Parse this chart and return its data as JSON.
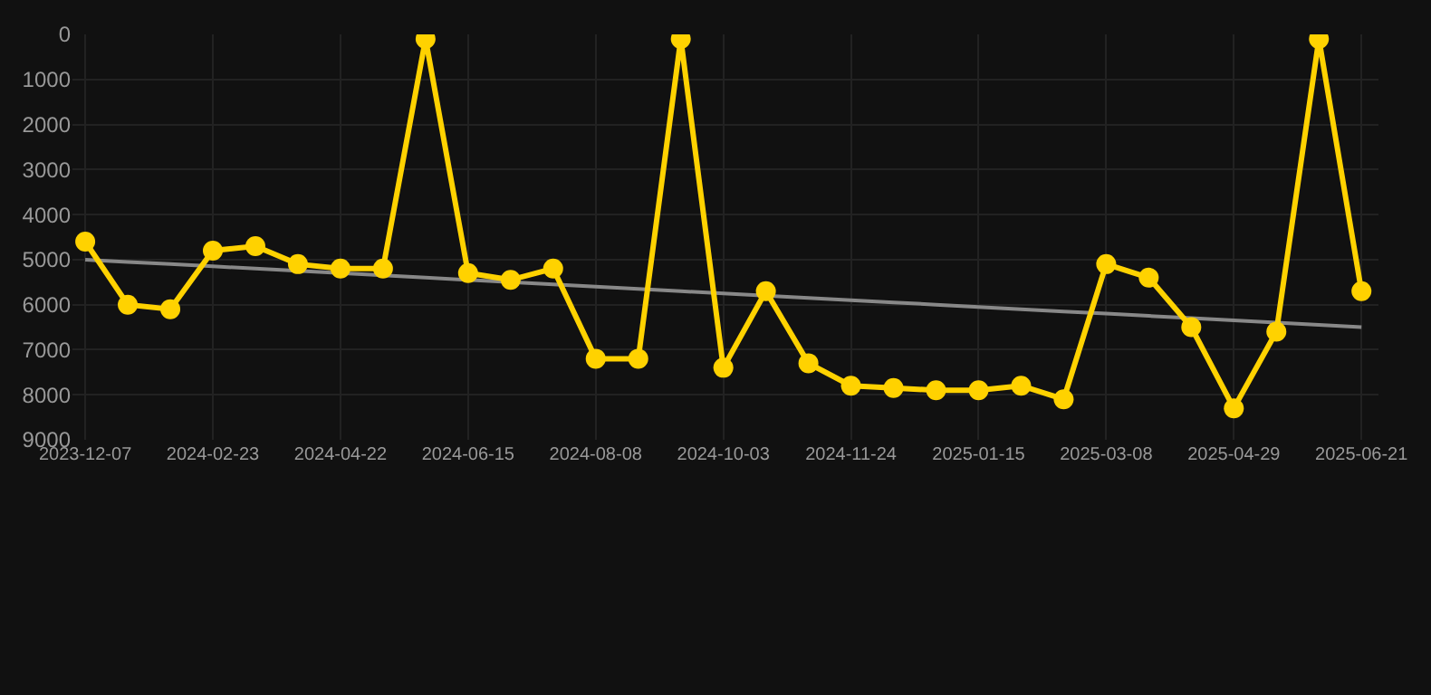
{
  "chart_data": {
    "type": "line",
    "categories": [
      "2023-12-07",
      null,
      null,
      "2024-02-23",
      null,
      null,
      "2024-04-22",
      null,
      null,
      "2024-06-15",
      null,
      null,
      "2024-08-08",
      null,
      null,
      "2024-10-03",
      null,
      null,
      "2024-11-24",
      null,
      null,
      "2025-01-15",
      null,
      null,
      "2025-03-08",
      null,
      null,
      "2025-04-29",
      null,
      null,
      "2025-06-21"
    ],
    "series": [
      {
        "color": "#ffd200",
        "marker": "circle",
        "values": [
          4600,
          6000,
          6100,
          4800,
          4700,
          5100,
          5200,
          5200,
          100,
          5300,
          5450,
          5200,
          7200,
          7200,
          100,
          7400,
          5700,
          7300,
          7800,
          7850,
          7900,
          7900,
          7800,
          8100,
          5100,
          5400,
          6500,
          8300,
          6600,
          100,
          5700
        ]
      },
      {
        "type": "line",
        "color": "#888888",
        "marker": "none",
        "values": [
          5000,
          5050,
          5100,
          5150,
          5200,
          5250,
          5300,
          5350,
          5400,
          5450,
          5500,
          5550,
          5600,
          5650,
          5700,
          5750,
          5800,
          5850,
          5900,
          5950,
          6000,
          6050,
          6100,
          6150,
          6200,
          6250,
          6300,
          6350,
          6400,
          6450,
          6500
        ]
      }
    ],
    "ylim": [
      9000,
      0
    ],
    "yticks": [
      0,
      1000,
      2000,
      3000,
      4000,
      5000,
      6000,
      7000,
      8000,
      9000
    ],
    "grid": true,
    "line_style": "solid"
  }
}
